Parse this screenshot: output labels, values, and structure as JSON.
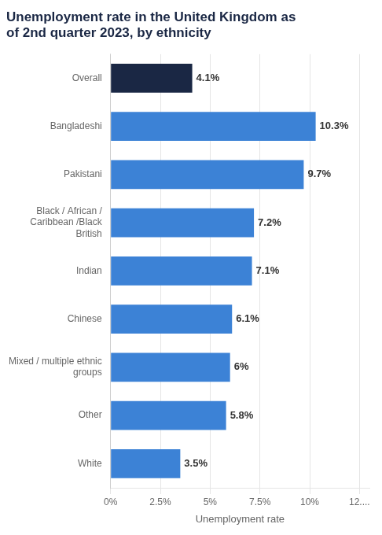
{
  "chart_data": {
    "type": "bar",
    "orientation": "horizontal",
    "title": "Unemployment rate in the United Kingdom as\nof 2nd quarter 2023, by ethnicity",
    "categories": [
      "Overall",
      "Bangladeshi",
      "Pakistani",
      "Black / African /\nCaribbean /Black\nBritish",
      "Indian",
      "Chinese",
      "Mixed / multiple ethnic\ngroups",
      "Other",
      "White"
    ],
    "values": [
      4.1,
      10.3,
      9.7,
      7.2,
      7.1,
      6.1,
      6.0,
      5.8,
      3.5
    ],
    "value_labels": [
      "4.1%",
      "10.3%",
      "9.7%",
      "7.2%",
      "7.1%",
      "6.1%",
      "6%",
      "5.8%",
      "3.5%"
    ],
    "data_labels": true,
    "colors": [
      "#1a2744",
      "#3c82d6",
      "#3c82d6",
      "#3c82d6",
      "#3c82d6",
      "#3c82d6",
      "#3c82d6",
      "#3c82d6",
      "#3c82d6"
    ],
    "xlabel": "Unemployment rate",
    "xlim": [
      0,
      13
    ],
    "xticks": [
      {
        "value": 0,
        "label": "0%"
      },
      {
        "value": 2.5,
        "label": "2.5%"
      },
      {
        "value": 5,
        "label": "5%"
      },
      {
        "value": 7.5,
        "label": "7.5%"
      },
      {
        "value": 10,
        "label": "10%"
      },
      {
        "value": 12.5,
        "label": "12...."
      }
    ],
    "grid": true
  }
}
